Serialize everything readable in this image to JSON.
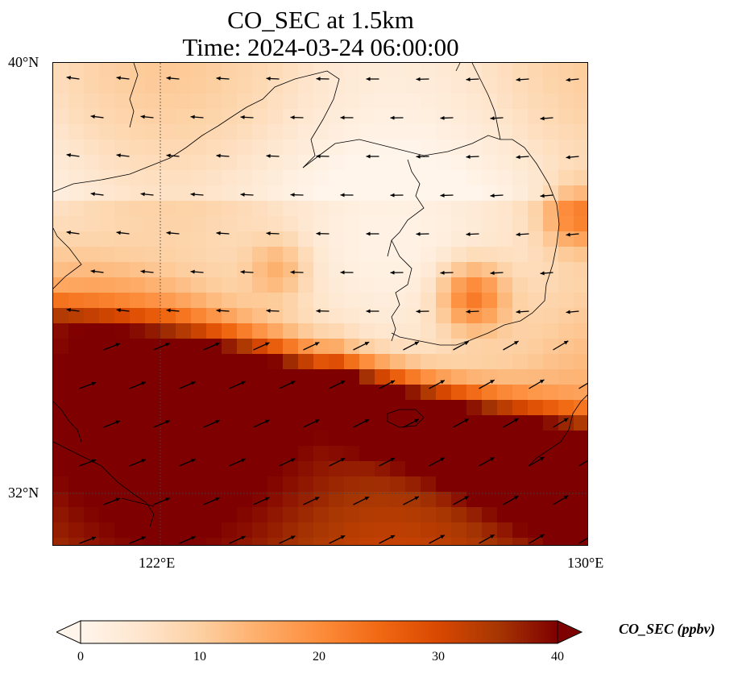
{
  "title": {
    "line1": "CO_SEC at 1.5km",
    "line2": "Time: 2024-03-24 06:00:00"
  },
  "axes": {
    "lat_ticks": [
      {
        "label": "40°N",
        "value": 40
      },
      {
        "label": "32°N",
        "value": 32
      }
    ],
    "lon_ticks": [
      {
        "label": "122°E",
        "value": 122
      },
      {
        "label": "130°E",
        "value": 130
      }
    ],
    "extent": {
      "lon_min": 120,
      "lon_max": 130,
      "lat_min": 31,
      "lat_max": 40
    },
    "gridlines": "dotted"
  },
  "colorbar": {
    "label": "CO_SEC (ppbv)",
    "ticks": [
      "0",
      "10",
      "20",
      "30",
      "40"
    ],
    "min": 0,
    "max": 40,
    "extend": "both",
    "colormap": [
      "#fff5eb",
      "#fee6ce",
      "#fdd0a2",
      "#fdae6b",
      "#fd8d3c",
      "#f16913",
      "#d94801",
      "#a63603",
      "#7f0000"
    ]
  },
  "map": {
    "colors": {
      "coast": "#000000",
      "wind_arrow": "#000000"
    }
  }
}
